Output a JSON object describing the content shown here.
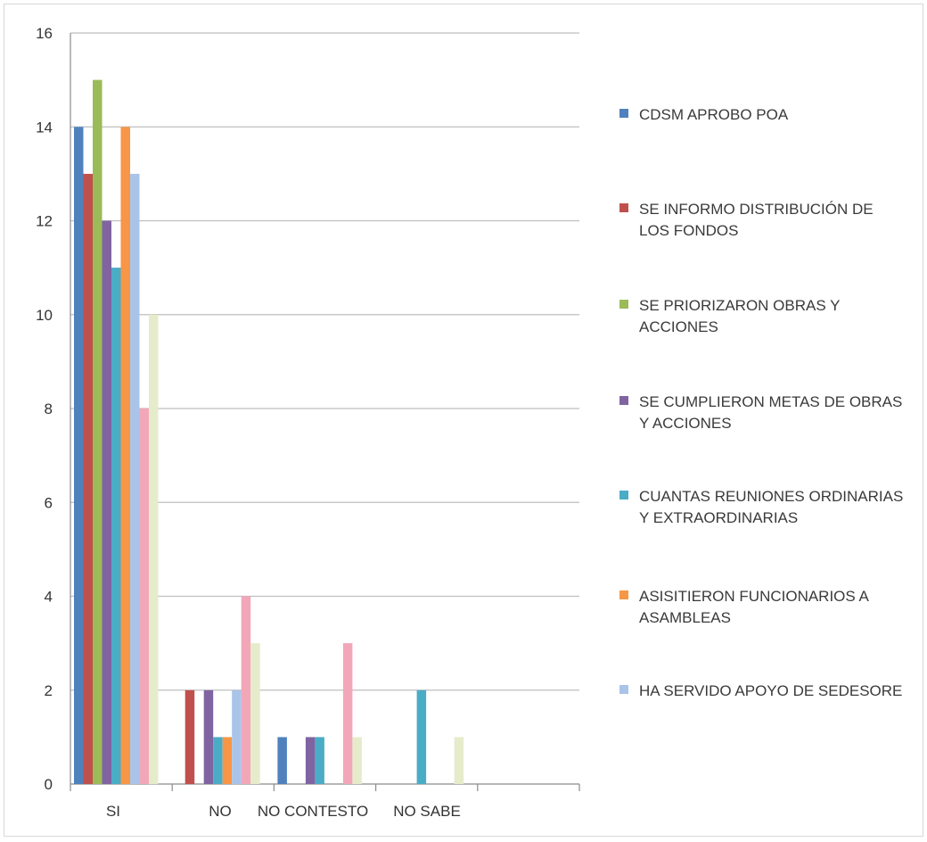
{
  "chart_data": {
    "type": "bar",
    "title": "",
    "xlabel": "",
    "ylabel": "",
    "ylim": [
      0,
      16
    ],
    "yticks": [
      0,
      2,
      4,
      6,
      8,
      10,
      12,
      14,
      16
    ],
    "grid": true,
    "legend_position": "right",
    "categories": [
      "SI",
      "NO",
      "NO CONTESTO",
      "NO SABE"
    ],
    "series": [
      {
        "name": "CDSM APROBO POA",
        "color": "#4f81bd",
        "values": [
          14,
          0,
          1,
          0
        ]
      },
      {
        "name": "SE INFORMO DISTRIBUCIÓN DE LOS FONDOS",
        "color": "#c0504d",
        "values": [
          13,
          2,
          0,
          0
        ]
      },
      {
        "name": "SE PRIORIZARON OBRAS Y ACCIONES",
        "color": "#9bbb59",
        "values": [
          15,
          0,
          0,
          0
        ]
      },
      {
        "name": "SE CUMPLIERON METAS DE OBRAS Y ACCIONES",
        "color": "#8064a2",
        "values": [
          12,
          2,
          1,
          0
        ]
      },
      {
        "name": "CUANTAS REUNIONES ORDINARIAS Y EXTRAORDINARIAS",
        "color": "#4bacc6",
        "values": [
          11,
          1,
          1,
          2
        ]
      },
      {
        "name": "ASISITIERON FUNCIONARIOS A ASAMBLEAS",
        "color": "#f79646",
        "values": [
          14,
          1,
          0,
          0
        ]
      },
      {
        "name": "HA SERVIDO APOYO DE SEDESORE",
        "color": "#a9c4e8",
        "values": [
          13,
          2,
          0,
          0
        ]
      },
      {
        "color": "#f2a7b8",
        "values": [
          8,
          4,
          3,
          0
        ]
      },
      {
        "color": "#e6eccb",
        "values": [
          10,
          3,
          1,
          1
        ]
      }
    ]
  }
}
